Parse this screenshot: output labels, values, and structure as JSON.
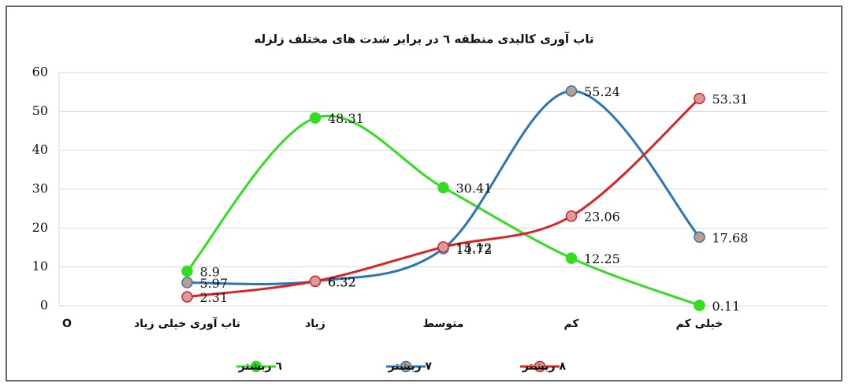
{
  "chart_data": {
    "type": "line",
    "title": "تاب آوری کالبدی منطقه ٦ در برابر شدت های مختلف زلزله",
    "categories": [
      "O",
      "تاب آوری خیلی زیاد",
      "زیاد",
      "متوسط",
      "کم",
      "خیلی کم"
    ],
    "series": [
      {
        "name": "٦ ریشتر",
        "color": "#33dd22",
        "marker_fill": "#33dd22",
        "values": [
          null,
          8.9,
          48.31,
          30.41,
          12.25,
          0.11
        ]
      },
      {
        "name": "٧ ریشتر",
        "color": "#2e75b6",
        "marker_fill": "#b8a08c",
        "values": [
          null,
          5.97,
          6.32,
          14.72,
          55.24,
          17.68
        ]
      },
      {
        "name": "٨ ریشتر",
        "color": "#dd2222",
        "marker_fill": "#d89a9a",
        "values": [
          null,
          2.31,
          6.32,
          15.12,
          23.06,
          53.31
        ]
      }
    ],
    "ylim": [
      0,
      60
    ],
    "yticks": [
      0,
      10,
      20,
      30,
      40,
      50,
      60
    ],
    "grid": true,
    "legend": "bottom"
  }
}
